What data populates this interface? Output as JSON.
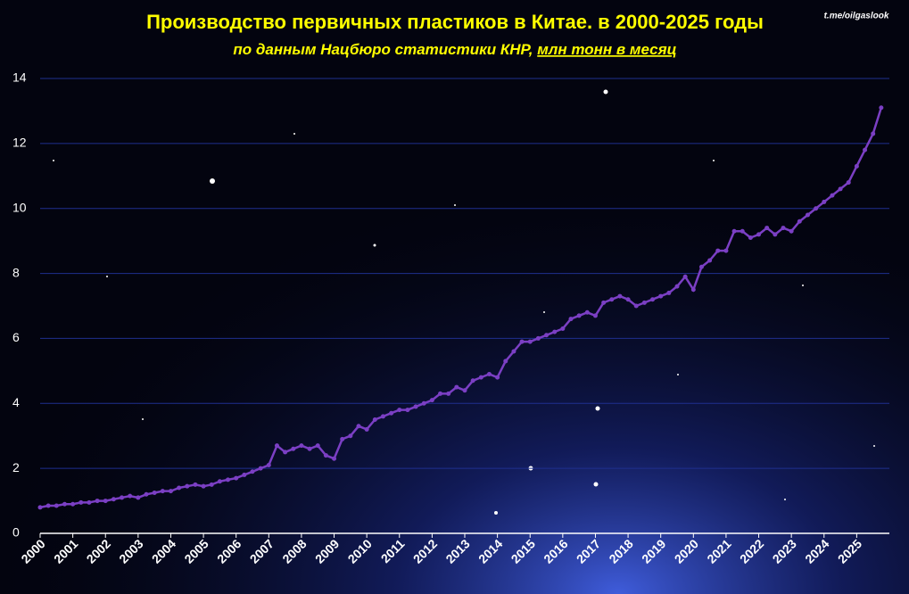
{
  "chart_data": {
    "type": "line",
    "title": "Производство  первичных пластиков  в Китае. в 2000-2025 годы",
    "subtitle": "по данным Нацбюро статистики КНР, ",
    "subtitle_unit": "млн тонн в месяц",
    "watermark": "t.me/oilgaslook",
    "x": [
      2000,
      2000.25,
      2000.5,
      2000.75,
      2001,
      2001.25,
      2001.5,
      2001.75,
      2002,
      2002.25,
      2002.5,
      2002.75,
      2003,
      2003.25,
      2003.5,
      2003.75,
      2004,
      2004.25,
      2004.5,
      2004.75,
      2005,
      2005.25,
      2005.5,
      2005.75,
      2006,
      2006.25,
      2006.5,
      2006.75,
      2007,
      2007.25,
      2007.5,
      2007.75,
      2008,
      2008.25,
      2008.5,
      2008.75,
      2009,
      2009.25,
      2009.5,
      2009.75,
      2010,
      2010.25,
      2010.5,
      2010.75,
      2011,
      2011.25,
      2011.5,
      2011.75,
      2012,
      2012.25,
      2012.5,
      2012.75,
      2013,
      2013.25,
      2013.5,
      2013.75,
      2014,
      2014.25,
      2014.5,
      2014.75,
      2015,
      2015.25,
      2015.5,
      2015.75,
      2016,
      2016.25,
      2016.5,
      2016.75,
      2017,
      2017.25,
      2017.5,
      2017.75,
      2018,
      2018.25,
      2018.5,
      2018.75,
      2019,
      2019.25,
      2019.5,
      2019.75,
      2020,
      2020.25,
      2020.5,
      2020.75,
      2021,
      2021.25,
      2021.5,
      2021.75,
      2022,
      2022.25,
      2022.5,
      2022.75,
      2023,
      2023.25,
      2023.5,
      2023.75,
      2024,
      2024.25,
      2024.5,
      2024.75,
      2025,
      2025.25,
      2025.5,
      2025.75
    ],
    "series": [
      {
        "name": "Производство первичных пластиков",
        "color": "#7b3fc4",
        "values": [
          0.8,
          0.85,
          0.85,
          0.9,
          0.9,
          0.95,
          0.95,
          1.0,
          1.0,
          1.05,
          1.1,
          1.15,
          1.1,
          1.2,
          1.25,
          1.3,
          1.3,
          1.4,
          1.45,
          1.5,
          1.45,
          1.5,
          1.6,
          1.65,
          1.7,
          1.8,
          1.9,
          2.0,
          2.1,
          2.7,
          2.5,
          2.6,
          2.7,
          2.6,
          2.7,
          2.4,
          2.3,
          2.9,
          3.0,
          3.3,
          3.2,
          3.5,
          3.6,
          3.7,
          3.8,
          3.8,
          3.9,
          4.0,
          4.1,
          4.3,
          4.3,
          4.5,
          4.4,
          4.7,
          4.8,
          4.9,
          4.8,
          5.3,
          5.6,
          5.9,
          5.9,
          6.0,
          6.1,
          6.2,
          6.3,
          6.6,
          6.7,
          6.8,
          6.7,
          7.1,
          7.2,
          7.3,
          7.2,
          7.0,
          7.1,
          7.2,
          7.3,
          7.4,
          7.6,
          7.9,
          7.5,
          8.2,
          8.4,
          8.7,
          8.7,
          9.3,
          9.3,
          9.1,
          9.2,
          9.4,
          9.2,
          9.4,
          9.3,
          9.6,
          9.8,
          10.0,
          10.2,
          10.4,
          10.6,
          10.8,
          11.3,
          11.8,
          12.3,
          13.1
        ]
      }
    ],
    "xlim": [
      2000,
      2026
    ],
    "xticks": [
      2000,
      2001,
      2002,
      2003,
      2004,
      2005,
      2006,
      2007,
      2008,
      2009,
      2010,
      2011,
      2012,
      2013,
      2014,
      2015,
      2016,
      2017,
      2018,
      2019,
      2020,
      2021,
      2022,
      2023,
      2024,
      2025
    ],
    "ylim": [
      0,
      14
    ],
    "yticks": [
      0,
      2,
      4,
      6,
      8,
      10,
      12,
      14
    ],
    "grid": true
  }
}
